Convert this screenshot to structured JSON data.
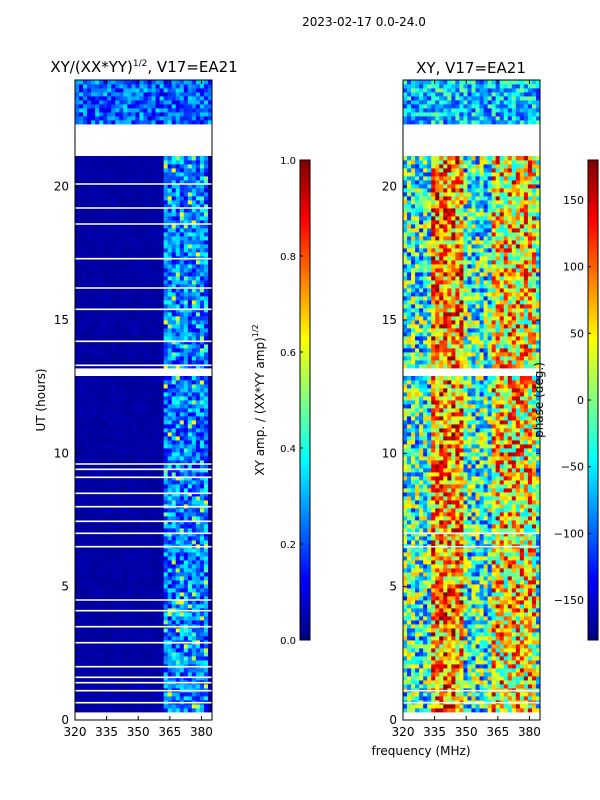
{
  "colors": {
    "jet": [
      "#00007f",
      "#0000ff",
      "#007fff",
      "#00ffff",
      "#7fff7f",
      "#ffff00",
      "#ff7f00",
      "#ff0000",
      "#7f0000"
    ],
    "background": "#ffffff",
    "frame": "#000000"
  },
  "chart_data": {
    "suptitle": "2023-02-17 0.0-24.0",
    "shared_xlabel": "frequency (MHz)",
    "panels": [
      {
        "type": "heatmap",
        "title": "XY/(XX*YY)",
        "title_sup": "1/2",
        "title_tail": ", V17=EA21",
        "xlabel": "",
        "ylabel": "UT (hours)",
        "xlim": [
          320,
          385
        ],
        "ylim": [
          0,
          24
        ],
        "xticks": [
          320,
          335,
          350,
          365,
          380
        ],
        "yticks": [
          0,
          5,
          10,
          15,
          20
        ],
        "gap_hours": [
          0.65,
          1.1,
          1.4,
          1.6,
          2.0,
          2.9,
          3.5,
          4.1,
          4.5,
          6.5,
          7.0,
          7.45,
          8.0,
          8.5,
          9.1,
          9.4,
          9.6,
          13.0,
          13.15,
          13.3,
          14.2,
          15.4,
          16.2,
          17.3,
          18.6,
          19.2,
          20.1,
          21.3,
          21.6,
          21.8,
          22.0,
          22.2
        ],
        "data_gaps_hours": [
          [
            0.0,
            0.3
          ],
          [
            12.95,
            13.25
          ],
          [
            21.2,
            22.4
          ]
        ],
        "colorbar": {
          "label": "XY amp. / (XX*YY amp)",
          "label_sup": "1/2",
          "vmin": 0.0,
          "vmax": 1.0,
          "ticks": [
            0.0,
            0.2,
            0.4,
            0.6,
            0.8,
            1.0
          ],
          "tick_labels": [
            "0.0",
            "0.2",
            "0.4",
            "0.6",
            "0.8",
            "1.0"
          ]
        }
      },
      {
        "type": "heatmap",
        "title": "XY, V17=EA21",
        "xlabel": "frequency (MHz)",
        "ylabel": "",
        "xlim": [
          320,
          385
        ],
        "ylim": [
          0,
          24
        ],
        "xticks": [
          320,
          335,
          350,
          365,
          380
        ],
        "yticks": [
          0,
          5,
          10,
          15,
          20
        ],
        "gap_hours": [
          0.65,
          1.1,
          6.5,
          7.0,
          13.0,
          13.15,
          21.3,
          21.6,
          22.0
        ],
        "data_gaps_hours": [
          [
            0.0,
            0.3
          ],
          [
            12.95,
            13.25
          ],
          [
            21.2,
            22.4
          ]
        ],
        "colorbar": {
          "label": "phase (deg.)",
          "vmin": -180,
          "vmax": 180,
          "ticks": [
            150,
            100,
            50,
            0,
            -50,
            -100,
            -150
          ],
          "tick_labels": [
            "150",
            "100",
            "50",
            "0",
            "−50",
            "−100",
            "−150"
          ]
        }
      }
    ]
  }
}
